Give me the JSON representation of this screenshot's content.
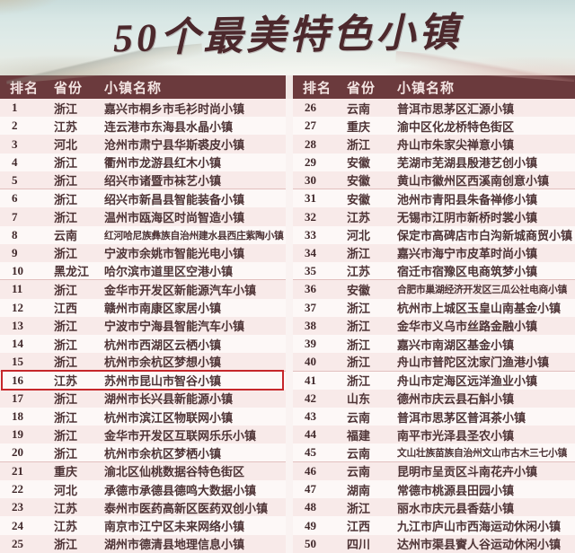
{
  "chart_data": {
    "type": "table",
    "title": "50个最美特色小镇",
    "columns": [
      "排名",
      "省份",
      "小镇名称"
    ],
    "layout": {
      "split_columns": [
        25,
        25
      ],
      "highlight_rank": 16,
      "separator_every": 5
    },
    "highlighted_row": {
      "rank": 16,
      "province": "江苏",
      "town": "苏州市昆山市智谷小镇"
    },
    "rows": [
      [
        1,
        "浙江",
        "嘉兴市桐乡市毛衫时尚小镇"
      ],
      [
        2,
        "江苏",
        "连云港市东海县水晶小镇"
      ],
      [
        3,
        "河北",
        "沧州市肃宁县华斯裘皮小镇"
      ],
      [
        4,
        "浙江",
        "衢州市龙游县红木小镇"
      ],
      [
        5,
        "浙江",
        "绍兴市诸暨市袜艺小镇"
      ],
      [
        6,
        "浙江",
        "绍兴市新昌县智能装备小镇"
      ],
      [
        7,
        "浙江",
        "温州市瓯海区时尚智造小镇"
      ],
      [
        8,
        "云南",
        "红河哈尼族彝族自治州建水县西庄紫陶小镇"
      ],
      [
        9,
        "浙江",
        "宁波市余姚市智能光电小镇"
      ],
      [
        10,
        "黑龙江",
        "哈尔滨市道里区空港小镇"
      ],
      [
        11,
        "浙江",
        "金华市开发区新能源汽车小镇"
      ],
      [
        12,
        "江西",
        "赣州市南康区家居小镇"
      ],
      [
        13,
        "浙江",
        "宁波市宁海县智能汽车小镇"
      ],
      [
        14,
        "浙江",
        "杭州市西湖区云栖小镇"
      ],
      [
        15,
        "浙江",
        "杭州市余杭区梦想小镇"
      ],
      [
        16,
        "江苏",
        "苏州市昆山市智谷小镇"
      ],
      [
        17,
        "浙江",
        "湖州市长兴县新能源小镇"
      ],
      [
        18,
        "浙江",
        "杭州市滨江区物联网小镇"
      ],
      [
        19,
        "浙江",
        "金华市开发区互联网乐乐小镇"
      ],
      [
        20,
        "浙江",
        "杭州市余杭区梦栖小镇"
      ],
      [
        21,
        "重庆",
        "渝北区仙桃数据谷特色街区"
      ],
      [
        22,
        "河北",
        "承德市承德县德鸣大数据小镇"
      ],
      [
        23,
        "江苏",
        "泰州市医药高新区医药双创小镇"
      ],
      [
        24,
        "江苏",
        "南京市江宁区未来网络小镇"
      ],
      [
        25,
        "浙江",
        "湖州市德清县地理信息小镇"
      ],
      [
        26,
        "云南",
        "普洱市思茅区汇源小镇"
      ],
      [
        27,
        "重庆",
        "渝中区化龙桥特色街区"
      ],
      [
        28,
        "浙江",
        "舟山市朱家尖禅意小镇"
      ],
      [
        29,
        "安徽",
        "芜湖市芜湖县殷港艺创小镇"
      ],
      [
        30,
        "安徽",
        "黄山市徽州区西溪南创意小镇"
      ],
      [
        31,
        "安徽",
        "池州市青阳县朱备禅修小镇"
      ],
      [
        32,
        "江苏",
        "无锡市江阴市新桥时裳小镇"
      ],
      [
        33,
        "河北",
        "保定市高碑店市白沟新城商贸小镇"
      ],
      [
        34,
        "浙江",
        "嘉兴市海宁市皮革时尚小镇"
      ],
      [
        35,
        "江苏",
        "宿迁市宿豫区电商筑梦小镇"
      ],
      [
        36,
        "安徽",
        "合肥市巢湖经济开发区三瓜公社电商小镇"
      ],
      [
        37,
        "浙江",
        "杭州市上城区玉皇山南基金小镇"
      ],
      [
        38,
        "浙江",
        "金华市义乌市丝路金融小镇"
      ],
      [
        39,
        "浙江",
        "嘉兴市南湖区基金小镇"
      ],
      [
        40,
        "浙江",
        "舟山市普陀区沈家门渔港小镇"
      ],
      [
        41,
        "浙江",
        "舟山市定海区远洋渔业小镇"
      ],
      [
        42,
        "山东",
        "德州市庆云县石斛小镇"
      ],
      [
        43,
        "云南",
        "普洱市思茅区普洱茶小镇"
      ],
      [
        44,
        "福建",
        "南平市光泽县圣农小镇"
      ],
      [
        45,
        "云南",
        "文山壮族苗族自治州文山市古木三七小镇"
      ],
      [
        46,
        "云南",
        "昆明市呈贡区斗南花卉小镇"
      ],
      [
        47,
        "湖南",
        "常德市桃源县田园小镇"
      ],
      [
        48,
        "浙江",
        "丽水市庆元县香菇小镇"
      ],
      [
        49,
        "江西",
        "九江市庐山市西海运动休闲小镇"
      ],
      [
        50,
        "四川",
        "达州市渠县賨人谷运动休闲小镇"
      ]
    ],
    "colors": {
      "header_bg": "#6b3a3d",
      "header_text": "#f3e4e2",
      "row_stripe_pink": "#f8eae9",
      "row_white": "#fdf8f7",
      "body_text": "#4e3436",
      "title_maroon": "#4c282c",
      "highlight_border_red": "#c6272b"
    }
  }
}
